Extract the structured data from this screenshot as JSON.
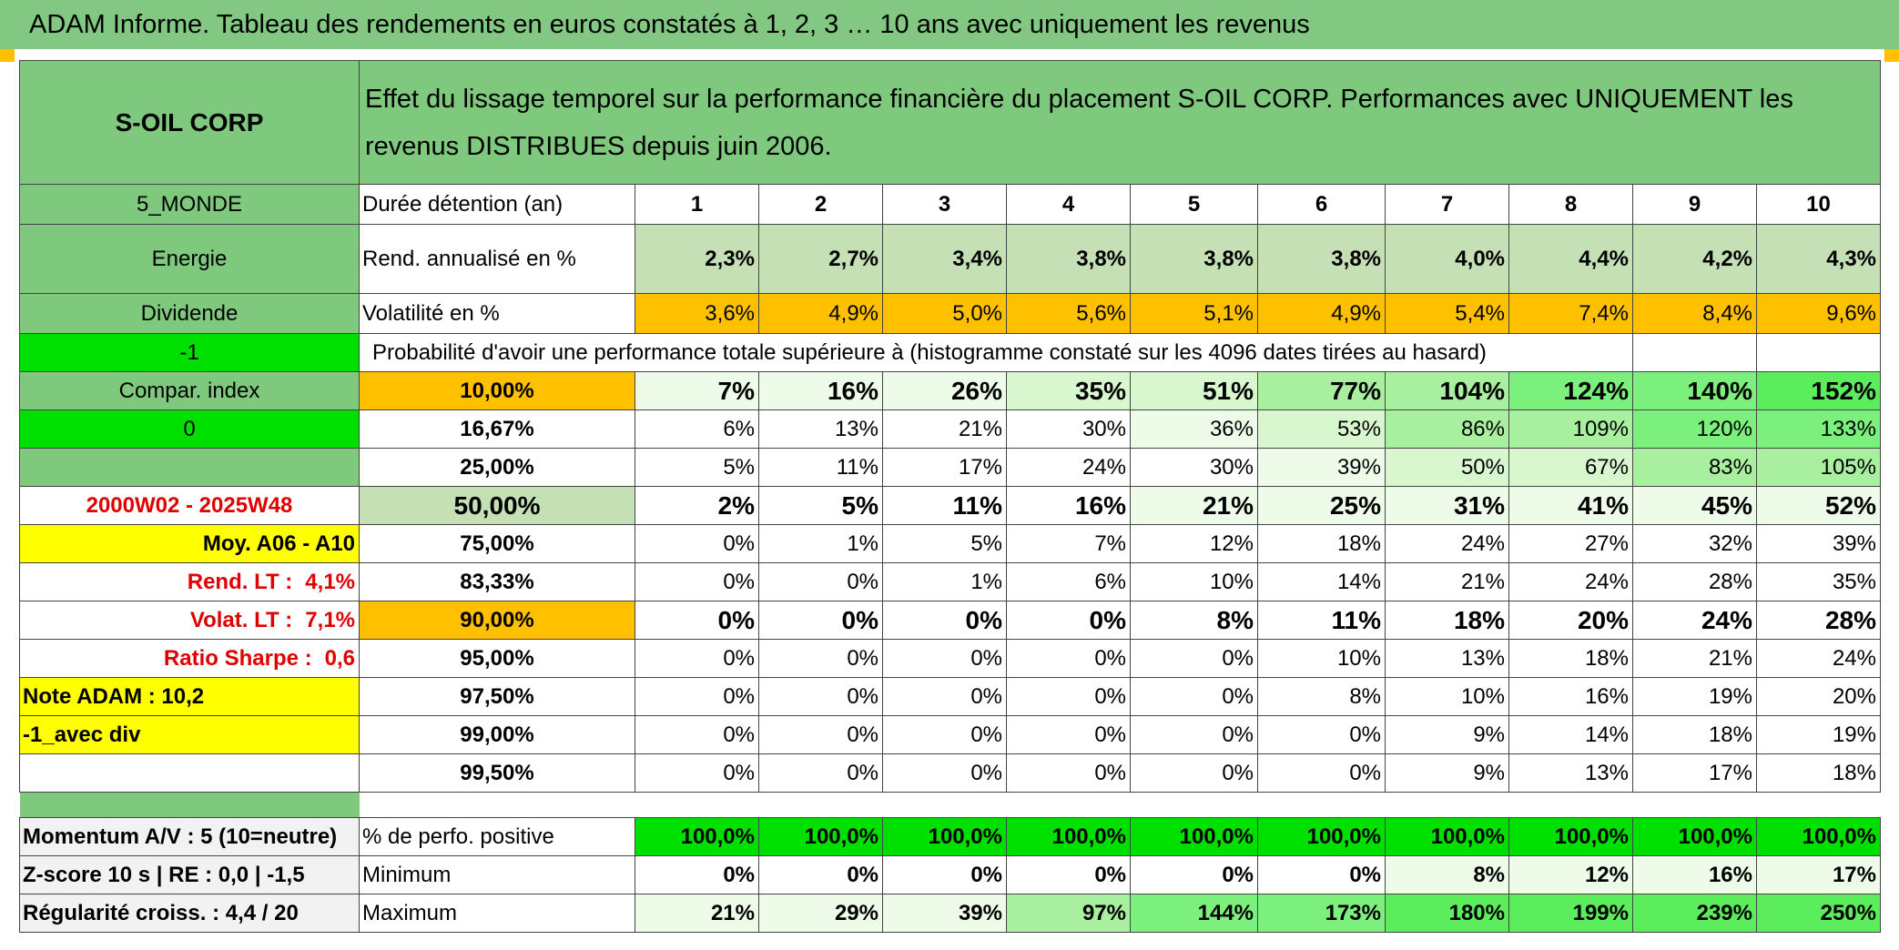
{
  "title": "ADAM Informe. Tableau des rendements en euros constatés à 1, 2, 3 … 10 ans avec uniquement les revenus",
  "company": "S-OIL CORP",
  "description": "Effet du lissage temporel sur la performance financière du placement S-OIL CORP. Performances avec UNIQUEMENT les revenus DISTRIBUES depuis juin 2006.",
  "left": {
    "zone": "5_MONDE",
    "sector": "Energie",
    "type": "Dividende",
    "flag1": "-1",
    "compar": "Compar. index",
    "flag2": "0",
    "period": "2000W02 - 2025W48",
    "moy": "Moy. A06 - A10",
    "rend_lt_label": "Rend. LT :",
    "rend_lt_value": "4,1%",
    "volat_lt_label": "Volat. LT :",
    "volat_lt_value": "7,1%",
    "sharpe_label": "Ratio Sharpe :",
    "sharpe_value": "0,6",
    "note": "Note ADAM : 10,2",
    "avec_div": "-1_avec div",
    "momentum": "Momentum A/V : 5 (10=neutre)",
    "zscore": "Z-score 10 s | RE : 0,0 | -1,5",
    "regularite": "Régularité croiss. : 4,4 / 20"
  },
  "header_row": {
    "label": "Durée détention (an)",
    "years": [
      "1",
      "2",
      "3",
      "4",
      "5",
      "6",
      "7",
      "8",
      "9",
      "10"
    ]
  },
  "rend_row": {
    "label": "Rend. annualisé en %",
    "values": [
      "2,3%",
      "2,7%",
      "3,4%",
      "3,8%",
      "3,8%",
      "3,8%",
      "4,0%",
      "4,4%",
      "4,2%",
      "4,3%"
    ]
  },
  "volat_row": {
    "label": "Volatilité en %",
    "values": [
      "3,6%",
      "4,9%",
      "5,0%",
      "5,6%",
      "5,1%",
      "4,9%",
      "5,4%",
      "7,4%",
      "8,4%",
      "9,6%"
    ]
  },
  "prob_title": "Probabilité d'avoir une performance totale supérieure à (histogramme constaté sur les 4096 dates tirées au hasard)",
  "prob_rows": [
    {
      "p": "10,00%",
      "values": [
        "7%",
        "16%",
        "26%",
        "35%",
        "51%",
        "77%",
        "104%",
        "124%",
        "140%",
        "152%"
      ]
    },
    {
      "p": "16,67%",
      "values": [
        "6%",
        "13%",
        "21%",
        "30%",
        "36%",
        "53%",
        "86%",
        "109%",
        "120%",
        "133%"
      ]
    },
    {
      "p": "25,00%",
      "values": [
        "5%",
        "11%",
        "17%",
        "24%",
        "30%",
        "39%",
        "50%",
        "67%",
        "83%",
        "105%"
      ]
    },
    {
      "p": "50,00%",
      "values": [
        "2%",
        "5%",
        "11%",
        "16%",
        "21%",
        "25%",
        "31%",
        "41%",
        "45%",
        "52%"
      ]
    },
    {
      "p": "75,00%",
      "values": [
        "0%",
        "1%",
        "5%",
        "7%",
        "12%",
        "18%",
        "24%",
        "27%",
        "32%",
        "39%"
      ]
    },
    {
      "p": "83,33%",
      "values": [
        "0%",
        "0%",
        "1%",
        "6%",
        "10%",
        "14%",
        "21%",
        "24%",
        "28%",
        "35%"
      ]
    },
    {
      "p": "90,00%",
      "values": [
        "0%",
        "0%",
        "0%",
        "0%",
        "8%",
        "11%",
        "18%",
        "20%",
        "24%",
        "28%"
      ]
    },
    {
      "p": "95,00%",
      "values": [
        "0%",
        "0%",
        "0%",
        "0%",
        "0%",
        "10%",
        "13%",
        "18%",
        "21%",
        "24%"
      ]
    },
    {
      "p": "97,50%",
      "values": [
        "0%",
        "0%",
        "0%",
        "0%",
        "0%",
        "8%",
        "10%",
        "16%",
        "19%",
        "20%"
      ]
    },
    {
      "p": "99,00%",
      "values": [
        "0%",
        "0%",
        "0%",
        "0%",
        "0%",
        "0%",
        "9%",
        "14%",
        "18%",
        "19%"
      ]
    },
    {
      "p": "99,50%",
      "values": [
        "0%",
        "0%",
        "0%",
        "0%",
        "0%",
        "0%",
        "9%",
        "13%",
        "17%",
        "18%"
      ]
    }
  ],
  "positive_row": {
    "label": "% de perfo. positive",
    "values": [
      "100,0%",
      "100,0%",
      "100,0%",
      "100,0%",
      "100,0%",
      "100,0%",
      "100,0%",
      "100,0%",
      "100,0%",
      "100,0%"
    ]
  },
  "min_row": {
    "label": "Minimum",
    "values": [
      "0%",
      "0%",
      "0%",
      "0%",
      "0%",
      "0%",
      "8%",
      "12%",
      "16%",
      "17%"
    ]
  },
  "max_row": {
    "label": "Maximum",
    "values": [
      "21%",
      "29%",
      "39%",
      "97%",
      "144%",
      "173%",
      "180%",
      "199%",
      "239%",
      "250%"
    ]
  },
  "colors": {
    "header_green": "#82c882",
    "light_green": "#c5e0b4",
    "orange": "#ffc000",
    "bright_green": "#00e000",
    "yellow": "#ffff00",
    "red_text": "#e00000"
  }
}
